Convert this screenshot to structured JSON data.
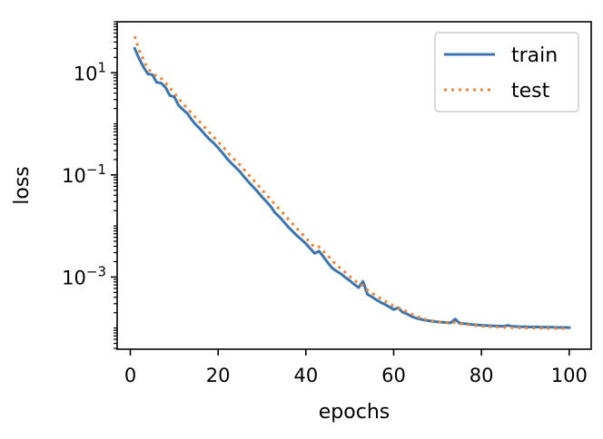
{
  "chart_data": {
    "type": "line",
    "xlabel": "epochs",
    "ylabel": "loss",
    "yscale": "log",
    "xlim": [
      -3,
      105
    ],
    "ylim": [
      3.85e-05,
      100
    ],
    "xticks": [
      0,
      20,
      40,
      60,
      80,
      100
    ],
    "xtick_labels": [
      "0",
      "20",
      "40",
      "60",
      "80",
      "100"
    ],
    "yticks": [
      {
        "value": 10,
        "base": "10",
        "exp": "1"
      },
      {
        "value": 0.1,
        "base": "10",
        "exp": "−1"
      },
      {
        "value": 0.001,
        "base": "10",
        "exp": "−3"
      }
    ],
    "grid": false,
    "legend_position": "top-right",
    "series": [
      {
        "name": "train",
        "color": "#3b75af",
        "style": "solid",
        "x": [
          1,
          2,
          3,
          4,
          5,
          6,
          7,
          8,
          9,
          10,
          11,
          12,
          13,
          14,
          15,
          16,
          17,
          18,
          19,
          20,
          21,
          22,
          23,
          24,
          25,
          26,
          27,
          28,
          29,
          30,
          31,
          32,
          33,
          34,
          35,
          36,
          37,
          38,
          39,
          40,
          41,
          42,
          43,
          44,
          45,
          46,
          47,
          48,
          49,
          50,
          51,
          52,
          53,
          54,
          55,
          56,
          57,
          58,
          59,
          60,
          61,
          62,
          63,
          64,
          65,
          66,
          67,
          68,
          69,
          70,
          71,
          72,
          73,
          74,
          75,
          76,
          77,
          78,
          79,
          80,
          81,
          82,
          83,
          84,
          85,
          86,
          87,
          88,
          89,
          90,
          91,
          92,
          93,
          94,
          95,
          96,
          97,
          98,
          99,
          100
        ],
        "y": [
          30,
          19,
          13,
          9.5,
          9.2,
          6.5,
          6.3,
          5.2,
          3.6,
          3.4,
          2.3,
          1.9,
          1.6,
          1.2,
          0.95,
          0.78,
          0.62,
          0.5,
          0.42,
          0.34,
          0.27,
          0.21,
          0.17,
          0.14,
          0.115,
          0.09,
          0.072,
          0.058,
          0.047,
          0.037,
          0.03,
          0.024,
          0.018,
          0.015,
          0.012,
          0.0095,
          0.0078,
          0.0064,
          0.0054,
          0.0045,
          0.0036,
          0.0029,
          0.0032,
          0.0025,
          0.0019,
          0.0015,
          0.0013,
          0.00115,
          0.00098,
          0.00085,
          0.00072,
          0.00062,
          0.00082,
          0.00046,
          0.00041,
          0.00036,
          0.00032,
          0.00029,
          0.00026,
          0.00023,
          0.00025,
          0.000205,
          0.00019,
          0.00017,
          0.000158,
          0.00015,
          0.000143,
          0.000139,
          0.000135,
          0.000132,
          0.00013,
          0.000128,
          0.000126,
          0.00015,
          0.000125,
          0.000122,
          0.00012,
          0.000117,
          0.000115,
          0.000113,
          0.000112,
          0.000111,
          0.00011,
          0.000109,
          0.000108,
          0.000113,
          0.000108,
          0.000107,
          0.000106,
          0.000106,
          0.000105,
          0.000105,
          0.000105,
          0.000104,
          0.000104,
          0.000104,
          0.000103,
          0.000103,
          0.000103,
          0.000102
        ]
      },
      {
        "name": "test",
        "color": "#ef8636",
        "style": "dotted",
        "x": [
          1,
          2,
          3,
          4,
          5,
          6,
          7,
          8,
          9,
          10,
          11,
          12,
          13,
          14,
          15,
          16,
          17,
          18,
          19,
          20,
          21,
          22,
          23,
          24,
          25,
          26,
          27,
          28,
          29,
          30,
          31,
          32,
          33,
          34,
          35,
          36,
          37,
          38,
          39,
          40,
          41,
          42,
          43,
          44,
          45,
          46,
          47,
          48,
          49,
          50,
          51,
          52,
          53,
          54,
          55,
          56,
          57,
          58,
          59,
          60,
          61,
          62,
          63,
          64,
          65,
          66,
          67,
          68,
          69,
          70,
          71,
          72,
          73,
          74,
          75,
          76,
          77,
          78,
          79,
          80,
          81,
          82,
          83,
          84,
          85,
          86,
          87,
          88,
          89,
          90,
          91,
          92,
          93,
          94,
          95,
          96,
          97,
          98,
          99,
          100
        ],
        "y": [
          52,
          28,
          18,
          12,
          10,
          8.5,
          7.8,
          6.5,
          5.0,
          4.1,
          3.1,
          2.5,
          2.0,
          1.6,
          1.3,
          1.05,
          0.85,
          0.68,
          0.55,
          0.45,
          0.36,
          0.29,
          0.23,
          0.19,
          0.155,
          0.125,
          0.1,
          0.08,
          0.064,
          0.051,
          0.041,
          0.033,
          0.026,
          0.021,
          0.017,
          0.0135,
          0.011,
          0.0088,
          0.0072,
          0.0058,
          0.0047,
          0.0038,
          0.0039,
          0.0032,
          0.0026,
          0.0021,
          0.0017,
          0.00145,
          0.00122,
          0.00103,
          0.00088,
          0.00075,
          0.00068,
          0.00056,
          0.00049,
          0.00043,
          0.00038,
          0.00034,
          0.0003,
          0.00027,
          0.00025,
          0.00023,
          0.00021,
          0.00019,
          0.000172,
          0.00016,
          0.00015,
          0.000143,
          0.000138,
          0.000134,
          0.000131,
          0.000128,
          0.000125,
          0.00013,
          0.000122,
          0.000119,
          0.000116,
          0.000113,
          0.000111,
          0.000109,
          0.000107,
          0.000106,
          0.000105,
          0.000104,
          0.000103,
          0.000103,
          0.000102,
          0.000101,
          0.000101,
          0.0001,
          0.0001,
          9.95e-05,
          9.92e-05,
          9.9e-05,
          9.88e-05,
          9.86e-05,
          9.85e-05,
          9.83e-05,
          9.82e-05,
          9.8e-05
        ]
      }
    ]
  }
}
